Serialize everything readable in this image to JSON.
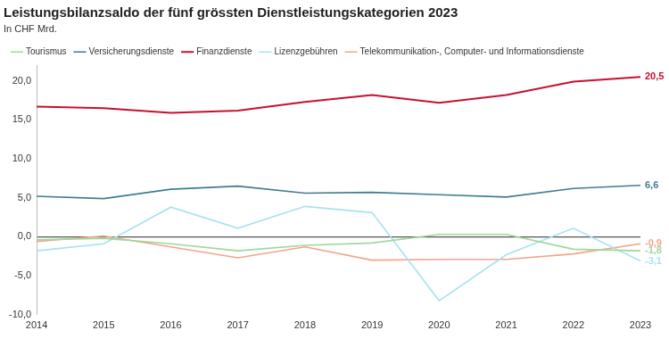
{
  "chart_data": {
    "type": "line",
    "title": "Leistungsbilanzsaldo der fünf grössten Dienstleistungskategorien 2023",
    "subtitle": "In CHF Mrd.",
    "categories": [
      "2014",
      "2015",
      "2016",
      "2017",
      "2018",
      "2019",
      "2020",
      "2021",
      "2022",
      "2023"
    ],
    "series": [
      {
        "name": "Tourismus",
        "color": "#9fd89a",
        "values": [
          -0.4,
          -0.2,
          -0.9,
          -1.8,
          -1.1,
          -0.8,
          0.3,
          0.3,
          -1.6,
          -1.8
        ],
        "value_labels": [
          null,
          null,
          null,
          null,
          null,
          null,
          null,
          null,
          null,
          "-1,8"
        ]
      },
      {
        "name": "Versicherungsdienste",
        "color": "#3f7d8f",
        "values": [
          5.2,
          4.9,
          6.1,
          6.5,
          5.6,
          5.7,
          5.4,
          5.1,
          6.2,
          6.6
        ],
        "value_labels": [
          null,
          null,
          null,
          null,
          null,
          null,
          null,
          null,
          null,
          "6,6"
        ]
      },
      {
        "name": "Finanzdienste",
        "color": "#c8102e",
        "values": [
          16.7,
          16.5,
          15.9,
          16.2,
          17.3,
          18.2,
          17.2,
          18.2,
          19.9,
          20.5
        ],
        "value_labels": [
          null,
          null,
          null,
          null,
          null,
          null,
          null,
          null,
          null,
          "20,5"
        ]
      },
      {
        "name": "Lizenzgebühren",
        "color": "#a6e3f0",
        "values": [
          -1.8,
          -0.9,
          3.8,
          1.1,
          3.9,
          3.1,
          -8.2,
          -2.3,
          1.1,
          -3.1
        ],
        "value_labels": [
          null,
          null,
          null,
          null,
          null,
          null,
          null,
          null,
          null,
          "-3,1"
        ]
      },
      {
        "name": "Telekommunikation-, Computer- und Informationsdienste",
        "color": "#f4a48a",
        "values": [
          -0.6,
          0.1,
          -1.3,
          -2.7,
          -1.3,
          -3.0,
          -2.9,
          -2.9,
          -2.2,
          -0.9
        ],
        "value_labels": [
          null,
          null,
          null,
          null,
          null,
          null,
          null,
          null,
          null,
          "-0,9"
        ]
      }
    ],
    "ylim": [
      -10,
      22
    ],
    "yticks": [
      {
        "value": -10,
        "label": "-10,0"
      },
      {
        "value": -5,
        "label": "-5,0"
      },
      {
        "value": 0,
        "label": "0,0"
      },
      {
        "value": 5,
        "label": "5,0"
      },
      {
        "value": 10,
        "label": "10,0"
      },
      {
        "value": 15,
        "label": "15,0"
      },
      {
        "value": 20,
        "label": "20,0"
      }
    ],
    "grid": false,
    "legend": "top-left",
    "data_labels": true
  }
}
